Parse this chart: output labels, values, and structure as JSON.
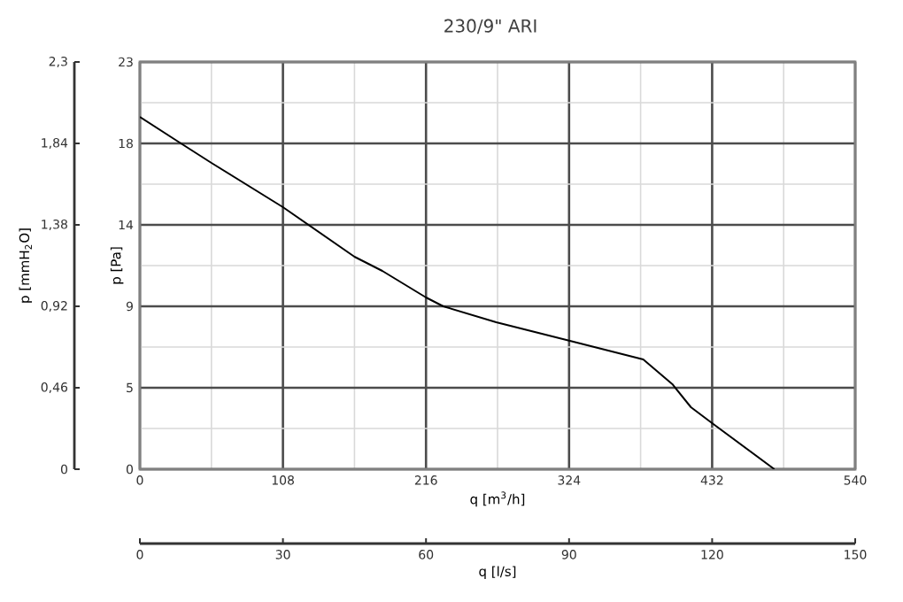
{
  "chart_data": {
    "type": "line",
    "title": "230/9\" ARI",
    "xlabel": "q [m$^{3}$/h]",
    "ylabel": "p [Pa]",
    "y2label": "p [mmH$_{2}$O]",
    "x2label": "q [l/s]",
    "xlim": [
      0,
      540
    ],
    "xticks": [
      0,
      108,
      216,
      324,
      432,
      540
    ],
    "ylim": [
      0,
      23
    ],
    "yticks": [
      0,
      {
        "value": 4.6,
        "label": "5"
      },
      {
        "value": 9.2,
        "label": "9"
      },
      {
        "value": 13.8,
        "label": "14"
      },
      {
        "value": 18.4,
        "label": "18"
      },
      23
    ],
    "y2lim": [
      0,
      2.3
    ],
    "y2ticks": [
      0,
      {
        "value": 0.46,
        "label": "0,46"
      },
      {
        "value": 0.92,
        "label": "0,92"
      },
      {
        "value": 1.38,
        "label": "1,38"
      },
      {
        "value": 1.84,
        "label": "1,84"
      },
      {
        "value": 2.3,
        "label": "2,3"
      }
    ],
    "x2lim": [
      0,
      150
    ],
    "x2ticks": [
      0,
      30,
      60,
      90,
      120,
      150
    ],
    "grid": true,
    "series": [
      {
        "color": "#000000",
        "x": [
          0,
          31,
          54,
          108,
          162,
          183,
          216,
          229,
          269,
          322,
          380,
          402,
          416,
          432,
          479
        ],
        "values": [
          19.9,
          18.4,
          17.3,
          14.8,
          12.0,
          11.2,
          9.7,
          9.2,
          8.3,
          7.3,
          6.2,
          4.8,
          3.5,
          2.6,
          0
        ]
      }
    ]
  }
}
